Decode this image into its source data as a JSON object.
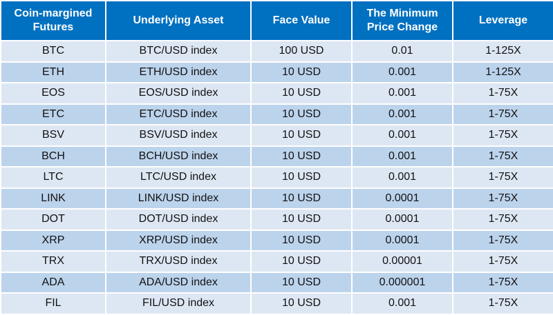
{
  "colors": {
    "header_bg": "#0070c0",
    "row_light": "#dde7f3",
    "row_dark": "#bcd3ec"
  },
  "headers": {
    "futures_line1": "Coin-margined",
    "futures_line2": "Futures",
    "asset": "Underlying Asset",
    "face": "Face Value",
    "min_line1": "The Minimum",
    "min_line2": "Price Change",
    "leverage": "Leverage"
  },
  "rows": [
    {
      "coin": "BTC",
      "asset": "BTC/USD index",
      "face": "100 USD",
      "min": "0.01",
      "leverage": "1-125X"
    },
    {
      "coin": "ETH",
      "asset": "ETH/USD index",
      "face": "10 USD",
      "min": "0.001",
      "leverage": "1-125X"
    },
    {
      "coin": "EOS",
      "asset": "EOS/USD index",
      "face": "10 USD",
      "min": "0.001",
      "leverage": "1-75X"
    },
    {
      "coin": "ETC",
      "asset": "ETC/USD index",
      "face": "10 USD",
      "min": "0.001",
      "leverage": "1-75X"
    },
    {
      "coin": "BSV",
      "asset": "BSV/USD index",
      "face": "10 USD",
      "min": "0.001",
      "leverage": "1-75X"
    },
    {
      "coin": "BCH",
      "asset": "BCH/USD index",
      "face": "10 USD",
      "min": "0.001",
      "leverage": "1-75X"
    },
    {
      "coin": "LTC",
      "asset": "LTC/USD index",
      "face": "10 USD",
      "min": "0.001",
      "leverage": "1-75X"
    },
    {
      "coin": "LINK",
      "asset": "LINK/USD index",
      "face": "10 USD",
      "min": "0.0001",
      "leverage": "1-75X"
    },
    {
      "coin": "DOT",
      "asset": "DOT/USD index",
      "face": "10 USD",
      "min": "0.0001",
      "leverage": "1-75X"
    },
    {
      "coin": "XRP",
      "asset": "XRP/USD index",
      "face": "10 USD",
      "min": "0.0001",
      "leverage": "1-75X"
    },
    {
      "coin": "TRX",
      "asset": "TRX/USD index",
      "face": "10 USD",
      "min": "0.00001",
      "leverage": "1-75X"
    },
    {
      "coin": "ADA",
      "asset": "ADA/USD index",
      "face": "10 USD",
      "min": "0.000001",
      "leverage": "1-75X"
    },
    {
      "coin": "FIL",
      "asset": "FIL/USD index",
      "face": "10 USD",
      "min": "0.001",
      "leverage": "1-75X"
    }
  ]
}
